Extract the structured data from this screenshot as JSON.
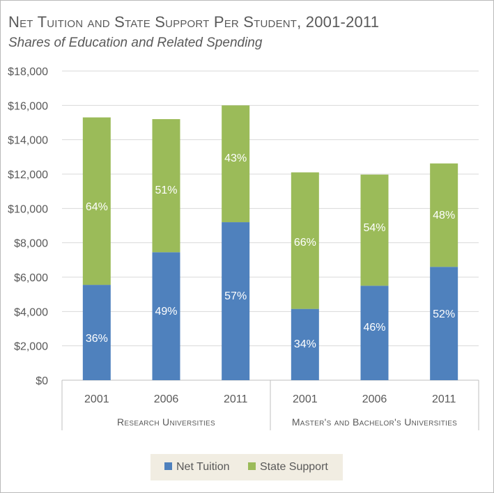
{
  "chart_data": {
    "type": "bar",
    "stacked": true,
    "title": "Net Tuition and State Support Per Student, 2001-2011",
    "subtitle": "Shares of Education and Related Spending",
    "ylim": [
      0,
      18000
    ],
    "yticks": [
      0,
      2000,
      4000,
      6000,
      8000,
      10000,
      12000,
      14000,
      16000,
      18000
    ],
    "ytick_labels": [
      "$0",
      "$2,000",
      "$4,000",
      "$6,000",
      "$8,000",
      "$10,000",
      "$12,000",
      "$14,000",
      "$16,000",
      "$18,000"
    ],
    "grid": true,
    "legend_position": "bottom",
    "groups": [
      {
        "label": "Research Universities",
        "categories": [
          "2001",
          "2006",
          "2011"
        ]
      },
      {
        "label": "Master's and Bachelor's Universities",
        "categories": [
          "2001",
          "2006",
          "2011"
        ]
      }
    ],
    "categories": [
      "2001",
      "2006",
      "2011",
      "2001",
      "2006",
      "2011"
    ],
    "series": [
      {
        "name": "Net Tuition",
        "color": "#4f81bd",
        "values": [
          5550,
          7450,
          9200,
          4150,
          5500,
          6600
        ],
        "labels": [
          "36%",
          "49%",
          "57%",
          "34%",
          "46%",
          "52%"
        ]
      },
      {
        "name": "State Support",
        "color": "#9bbb59",
        "values": [
          9750,
          7750,
          6800,
          7950,
          6470,
          6020
        ],
        "labels": [
          "64%",
          "51%",
          "43%",
          "66%",
          "54%",
          "48%"
        ]
      }
    ]
  }
}
